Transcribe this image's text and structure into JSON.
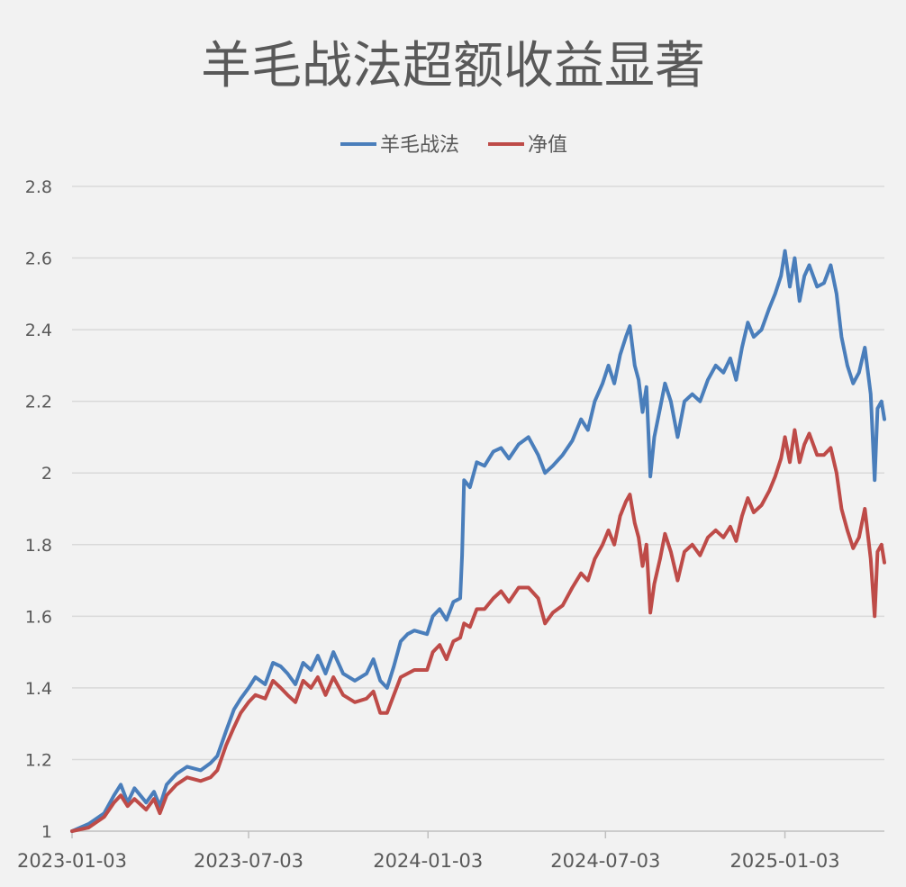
{
  "colors": {
    "background": "#f2f2f2",
    "grid": "#d9d9d9",
    "text": "#595959",
    "series_blue": "#4a7ebb",
    "series_red": "#be4b48"
  },
  "chart_data": {
    "type": "line",
    "title": "羊毛战法超额收益显著",
    "xlabel": "",
    "ylabel": "",
    "legend_position": "top-center",
    "grid": true,
    "ylim": [
      1,
      2.8
    ],
    "y_ticks": [
      "1",
      "1.2",
      "1.4",
      "1.6",
      "1.8",
      "2",
      "2.2",
      "2.4",
      "2.6",
      "2.8"
    ],
    "x_ticks": [
      "2023-01-03",
      "2023-07-03",
      "2024-01-03",
      "2024-07-03",
      "2025-01-03"
    ],
    "x_range": [
      "2023-01-03",
      "2025-04-15"
    ],
    "series": [
      {
        "name": "羊毛战法",
        "color": "#4a7ebb",
        "points": [
          [
            "2023-01-03",
            1.0
          ],
          [
            "2023-01-20",
            1.02
          ],
          [
            "2023-02-05",
            1.05
          ],
          [
            "2023-02-15",
            1.1
          ],
          [
            "2023-02-22",
            1.13
          ],
          [
            "2023-03-01",
            1.08
          ],
          [
            "2023-03-08",
            1.12
          ],
          [
            "2023-03-20",
            1.08
          ],
          [
            "2023-03-28",
            1.11
          ],
          [
            "2023-04-03",
            1.07
          ],
          [
            "2023-04-10",
            1.13
          ],
          [
            "2023-04-20",
            1.16
          ],
          [
            "2023-05-01",
            1.18
          ],
          [
            "2023-05-15",
            1.17
          ],
          [
            "2023-05-25",
            1.19
          ],
          [
            "2023-06-01",
            1.21
          ],
          [
            "2023-06-10",
            1.28
          ],
          [
            "2023-06-18",
            1.34
          ],
          [
            "2023-06-25",
            1.37
          ],
          [
            "2023-07-03",
            1.4
          ],
          [
            "2023-07-10",
            1.43
          ],
          [
            "2023-07-20",
            1.41
          ],
          [
            "2023-07-28",
            1.47
          ],
          [
            "2023-08-05",
            1.46
          ],
          [
            "2023-08-12",
            1.44
          ],
          [
            "2023-08-20",
            1.41
          ],
          [
            "2023-08-28",
            1.47
          ],
          [
            "2023-09-05",
            1.45
          ],
          [
            "2023-09-12",
            1.49
          ],
          [
            "2023-09-20",
            1.44
          ],
          [
            "2023-09-28",
            1.5
          ],
          [
            "2023-10-08",
            1.44
          ],
          [
            "2023-10-20",
            1.42
          ],
          [
            "2023-11-01",
            1.44
          ],
          [
            "2023-11-08",
            1.48
          ],
          [
            "2023-11-15",
            1.42
          ],
          [
            "2023-11-22",
            1.4
          ],
          [
            "2023-11-29",
            1.46
          ],
          [
            "2023-12-06",
            1.53
          ],
          [
            "2023-12-13",
            1.55
          ],
          [
            "2023-12-20",
            1.56
          ],
          [
            "2024-01-02",
            1.55
          ],
          [
            "2024-01-08",
            1.6
          ],
          [
            "2024-01-15",
            1.62
          ],
          [
            "2024-01-22",
            1.59
          ],
          [
            "2024-01-29",
            1.64
          ],
          [
            "2024-02-05",
            1.65
          ],
          [
            "2024-02-07",
            1.77
          ],
          [
            "2024-02-09",
            1.98
          ],
          [
            "2024-02-15",
            1.96
          ],
          [
            "2024-02-22",
            2.03
          ],
          [
            "2024-03-01",
            2.02
          ],
          [
            "2024-03-10",
            2.06
          ],
          [
            "2024-03-18",
            2.07
          ],
          [
            "2024-03-26",
            2.04
          ],
          [
            "2024-04-05",
            2.08
          ],
          [
            "2024-04-15",
            2.1
          ],
          [
            "2024-04-25",
            2.05
          ],
          [
            "2024-05-02",
            2.0
          ],
          [
            "2024-05-10",
            2.02
          ],
          [
            "2024-05-20",
            2.05
          ],
          [
            "2024-05-30",
            2.09
          ],
          [
            "2024-06-08",
            2.15
          ],
          [
            "2024-06-15",
            2.12
          ],
          [
            "2024-06-22",
            2.2
          ],
          [
            "2024-06-30",
            2.25
          ],
          [
            "2024-07-06",
            2.3
          ],
          [
            "2024-07-12",
            2.25
          ],
          [
            "2024-07-18",
            2.33
          ],
          [
            "2024-07-24",
            2.38
          ],
          [
            "2024-07-28",
            2.41
          ],
          [
            "2024-08-02",
            2.3
          ],
          [
            "2024-08-06",
            2.26
          ],
          [
            "2024-08-10",
            2.17
          ],
          [
            "2024-08-14",
            2.24
          ],
          [
            "2024-08-18",
            1.99
          ],
          [
            "2024-08-22",
            2.1
          ],
          [
            "2024-08-28",
            2.18
          ],
          [
            "2024-09-02",
            2.25
          ],
          [
            "2024-09-08",
            2.2
          ],
          [
            "2024-09-15",
            2.1
          ],
          [
            "2024-09-22",
            2.2
          ],
          [
            "2024-09-30",
            2.22
          ],
          [
            "2024-10-08",
            2.2
          ],
          [
            "2024-10-16",
            2.26
          ],
          [
            "2024-10-24",
            2.3
          ],
          [
            "2024-11-01",
            2.28
          ],
          [
            "2024-11-08",
            2.32
          ],
          [
            "2024-11-14",
            2.26
          ],
          [
            "2024-11-20",
            2.35
          ],
          [
            "2024-11-26",
            2.42
          ],
          [
            "2024-12-02",
            2.38
          ],
          [
            "2024-12-10",
            2.4
          ],
          [
            "2024-12-18",
            2.46
          ],
          [
            "2024-12-24",
            2.5
          ],
          [
            "2024-12-30",
            2.55
          ],
          [
            "2025-01-03",
            2.62
          ],
          [
            "2025-01-08",
            2.52
          ],
          [
            "2025-01-13",
            2.6
          ],
          [
            "2025-01-18",
            2.48
          ],
          [
            "2025-01-23",
            2.55
          ],
          [
            "2025-01-28",
            2.58
          ],
          [
            "2025-02-05",
            2.52
          ],
          [
            "2025-02-12",
            2.53
          ],
          [
            "2025-02-19",
            2.58
          ],
          [
            "2025-02-25",
            2.5
          ],
          [
            "2025-03-02",
            2.38
          ],
          [
            "2025-03-08",
            2.3
          ],
          [
            "2025-03-14",
            2.25
          ],
          [
            "2025-03-20",
            2.28
          ],
          [
            "2025-03-26",
            2.35
          ],
          [
            "2025-04-01",
            2.22
          ],
          [
            "2025-04-05",
            1.98
          ],
          [
            "2025-04-08",
            2.18
          ],
          [
            "2025-04-12",
            2.2
          ],
          [
            "2025-04-15",
            2.15
          ]
        ]
      },
      {
        "name": "净值",
        "color": "#be4b48",
        "points": [
          [
            "2023-01-03",
            1.0
          ],
          [
            "2023-01-20",
            1.01
          ],
          [
            "2023-02-05",
            1.04
          ],
          [
            "2023-02-15",
            1.08
          ],
          [
            "2023-02-22",
            1.1
          ],
          [
            "2023-03-01",
            1.07
          ],
          [
            "2023-03-08",
            1.09
          ],
          [
            "2023-03-20",
            1.06
          ],
          [
            "2023-03-28",
            1.09
          ],
          [
            "2023-04-03",
            1.05
          ],
          [
            "2023-04-10",
            1.1
          ],
          [
            "2023-04-20",
            1.13
          ],
          [
            "2023-05-01",
            1.15
          ],
          [
            "2023-05-15",
            1.14
          ],
          [
            "2023-05-25",
            1.15
          ],
          [
            "2023-06-01",
            1.17
          ],
          [
            "2023-06-10",
            1.24
          ],
          [
            "2023-06-18",
            1.29
          ],
          [
            "2023-06-25",
            1.33
          ],
          [
            "2023-07-03",
            1.36
          ],
          [
            "2023-07-10",
            1.38
          ],
          [
            "2023-07-20",
            1.37
          ],
          [
            "2023-07-28",
            1.42
          ],
          [
            "2023-08-05",
            1.4
          ],
          [
            "2023-08-12",
            1.38
          ],
          [
            "2023-08-20",
            1.36
          ],
          [
            "2023-08-28",
            1.42
          ],
          [
            "2023-09-05",
            1.4
          ],
          [
            "2023-09-12",
            1.43
          ],
          [
            "2023-09-20",
            1.38
          ],
          [
            "2023-09-28",
            1.43
          ],
          [
            "2023-10-08",
            1.38
          ],
          [
            "2023-10-20",
            1.36
          ],
          [
            "2023-11-01",
            1.37
          ],
          [
            "2023-11-08",
            1.39
          ],
          [
            "2023-11-15",
            1.33
          ],
          [
            "2023-11-22",
            1.33
          ],
          [
            "2023-11-29",
            1.38
          ],
          [
            "2023-12-06",
            1.43
          ],
          [
            "2023-12-13",
            1.44
          ],
          [
            "2023-12-20",
            1.45
          ],
          [
            "2024-01-02",
            1.45
          ],
          [
            "2024-01-08",
            1.5
          ],
          [
            "2024-01-15",
            1.52
          ],
          [
            "2024-01-22",
            1.48
          ],
          [
            "2024-01-29",
            1.53
          ],
          [
            "2024-02-05",
            1.54
          ],
          [
            "2024-02-09",
            1.58
          ],
          [
            "2024-02-15",
            1.57
          ],
          [
            "2024-02-22",
            1.62
          ],
          [
            "2024-03-01",
            1.62
          ],
          [
            "2024-03-10",
            1.65
          ],
          [
            "2024-03-18",
            1.67
          ],
          [
            "2024-03-26",
            1.64
          ],
          [
            "2024-04-05",
            1.68
          ],
          [
            "2024-04-15",
            1.68
          ],
          [
            "2024-04-25",
            1.65
          ],
          [
            "2024-05-02",
            1.58
          ],
          [
            "2024-05-10",
            1.61
          ],
          [
            "2024-05-20",
            1.63
          ],
          [
            "2024-05-30",
            1.68
          ],
          [
            "2024-06-08",
            1.72
          ],
          [
            "2024-06-15",
            1.7
          ],
          [
            "2024-06-22",
            1.76
          ],
          [
            "2024-06-30",
            1.8
          ],
          [
            "2024-07-06",
            1.84
          ],
          [
            "2024-07-12",
            1.8
          ],
          [
            "2024-07-18",
            1.88
          ],
          [
            "2024-07-24",
            1.92
          ],
          [
            "2024-07-28",
            1.94
          ],
          [
            "2024-08-02",
            1.86
          ],
          [
            "2024-08-06",
            1.82
          ],
          [
            "2024-08-10",
            1.74
          ],
          [
            "2024-08-14",
            1.8
          ],
          [
            "2024-08-18",
            1.61
          ],
          [
            "2024-08-22",
            1.69
          ],
          [
            "2024-08-28",
            1.76
          ],
          [
            "2024-09-02",
            1.83
          ],
          [
            "2024-09-08",
            1.78
          ],
          [
            "2024-09-15",
            1.7
          ],
          [
            "2024-09-22",
            1.78
          ],
          [
            "2024-09-30",
            1.8
          ],
          [
            "2024-10-08",
            1.77
          ],
          [
            "2024-10-16",
            1.82
          ],
          [
            "2024-10-24",
            1.84
          ],
          [
            "2024-11-01",
            1.82
          ],
          [
            "2024-11-08",
            1.85
          ],
          [
            "2024-11-14",
            1.81
          ],
          [
            "2024-11-20",
            1.88
          ],
          [
            "2024-11-26",
            1.93
          ],
          [
            "2024-12-02",
            1.89
          ],
          [
            "2024-12-10",
            1.91
          ],
          [
            "2024-12-18",
            1.95
          ],
          [
            "2024-12-24",
            1.99
          ],
          [
            "2024-12-30",
            2.04
          ],
          [
            "2025-01-03",
            2.1
          ],
          [
            "2025-01-08",
            2.03
          ],
          [
            "2025-01-13",
            2.12
          ],
          [
            "2025-01-18",
            2.03
          ],
          [
            "2025-01-23",
            2.08
          ],
          [
            "2025-01-28",
            2.11
          ],
          [
            "2025-02-05",
            2.05
          ],
          [
            "2025-02-12",
            2.05
          ],
          [
            "2025-02-19",
            2.07
          ],
          [
            "2025-02-25",
            2.0
          ],
          [
            "2025-03-02",
            1.9
          ],
          [
            "2025-03-08",
            1.84
          ],
          [
            "2025-03-14",
            1.79
          ],
          [
            "2025-03-20",
            1.82
          ],
          [
            "2025-03-26",
            1.9
          ],
          [
            "2025-04-01",
            1.76
          ],
          [
            "2025-04-05",
            1.6
          ],
          [
            "2025-04-08",
            1.78
          ],
          [
            "2025-04-12",
            1.8
          ],
          [
            "2025-04-15",
            1.75
          ]
        ]
      }
    ]
  }
}
